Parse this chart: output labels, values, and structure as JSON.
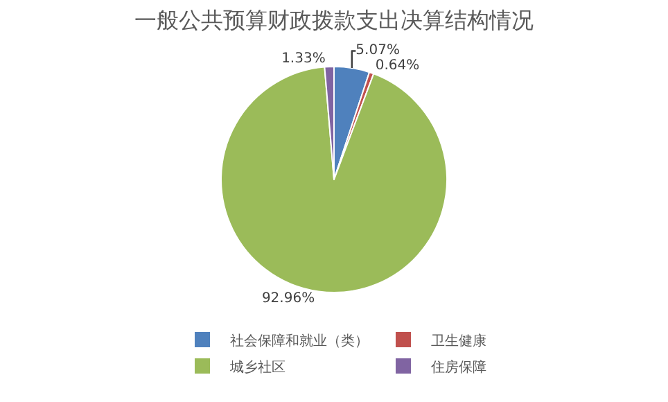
{
  "chart_data": {
    "type": "pie",
    "title": "一般公共预算财政拨款支出决算结构情况",
    "categories": [
      "社会保障和就业（类）",
      "卫生健康",
      "城乡社区",
      "住房保障"
    ],
    "values": [
      5.07,
      0.64,
      92.96,
      1.33
    ],
    "colors": [
      "#4f81bd",
      "#c0504d",
      "#9bbb59",
      "#8064a2"
    ],
    "value_labels": [
      "5.07%",
      "0.64%",
      "92.96%",
      "1.33%"
    ],
    "legend": "bottom"
  }
}
